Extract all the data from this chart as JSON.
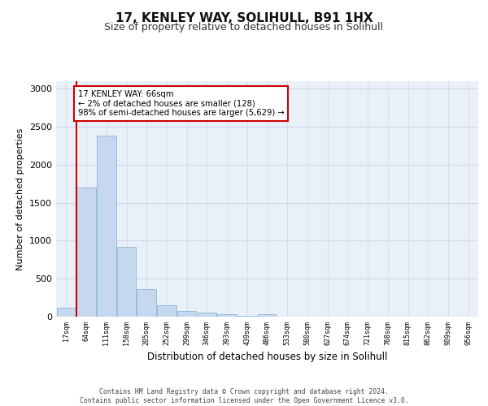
{
  "title": "17, KENLEY WAY, SOLIHULL, B91 1HX",
  "subtitle": "Size of property relative to detached houses in Solihull",
  "xlabel": "Distribution of detached houses by size in Solihull",
  "ylabel": "Number of detached properties",
  "bar_labels": [
    "17sqm",
    "64sqm",
    "111sqm",
    "158sqm",
    "205sqm",
    "252sqm",
    "299sqm",
    "346sqm",
    "393sqm",
    "439sqm",
    "486sqm",
    "533sqm",
    "580sqm",
    "627sqm",
    "674sqm",
    "721sqm",
    "768sqm",
    "815sqm",
    "862sqm",
    "909sqm",
    "956sqm"
  ],
  "bar_values": [
    120,
    1700,
    2380,
    920,
    360,
    155,
    80,
    55,
    35,
    10,
    30,
    0,
    0,
    0,
    0,
    0,
    0,
    0,
    0,
    0,
    0
  ],
  "bar_color": "#c5d8f0",
  "bar_edge_color": "#7bafd4",
  "vline_color": "#cc0000",
  "annotation_text": "17 KENLEY WAY: 66sqm\n← 2% of detached houses are smaller (128)\n98% of semi-detached houses are larger (5,629) →",
  "annotation_box_color": "#ffffff",
  "annotation_box_edge": "#cc0000",
  "ylim": [
    0,
    3100
  ],
  "yticks": [
    0,
    500,
    1000,
    1500,
    2000,
    2500,
    3000
  ],
  "grid_color": "#d0d8e8",
  "bg_color": "#eaf0f8",
  "footer_line1": "Contains HM Land Registry data © Crown copyright and database right 2024.",
  "footer_line2": "Contains public sector information licensed under the Open Government Licence v3.0."
}
